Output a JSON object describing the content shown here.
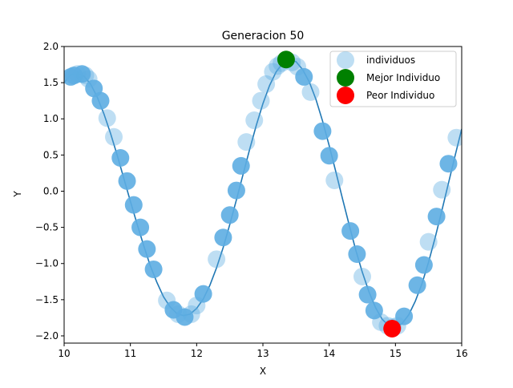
{
  "chart_data": {
    "type": "scatter",
    "title": "Generacion 50",
    "xlabel": "X",
    "ylabel": "Y",
    "xlim": [
      10,
      16
    ],
    "ylim": [
      -2.1,
      2.0
    ],
    "x_ticks": [
      10,
      11,
      12,
      13,
      14,
      15,
      16
    ],
    "x_tick_labels": [
      "10",
      "11",
      "12",
      "13",
      "14",
      "15",
      "16"
    ],
    "y_ticks": [
      -2.0,
      -1.5,
      -1.0,
      -0.5,
      0.0,
      0.5,
      1.0,
      1.5,
      2.0
    ],
    "y_tick_labels": [
      "−2.0",
      "−1.5",
      "−1.0",
      "−0.5",
      "0.0",
      "0.5",
      "1.0",
      "1.5",
      "2.0"
    ],
    "grid": false,
    "legend_position": "top-right",
    "curve": {
      "formula": "sin(x) + sin(x/2) approximation",
      "x": [
        10.0,
        10.1,
        10.2,
        10.3,
        10.4,
        10.5,
        10.6,
        10.7,
        10.8,
        10.9,
        11.0,
        11.1,
        11.2,
        11.3,
        11.4,
        11.5,
        11.6,
        11.7,
        11.8,
        11.9,
        12.0,
        12.1,
        12.2,
        12.3,
        12.4,
        12.5,
        12.6,
        12.7,
        12.8,
        12.9,
        13.0,
        13.1,
        13.2,
        13.3,
        13.4,
        13.5,
        13.6,
        13.7,
        13.8,
        13.9,
        14.0,
        14.1,
        14.2,
        14.3,
        14.4,
        14.5,
        14.6,
        14.7,
        14.8,
        14.9,
        15.0,
        15.1,
        15.2,
        15.3,
        15.4,
        15.5,
        15.6,
        15.7,
        15.8,
        15.9,
        16.0
      ],
      "y": [
        1.5,
        1.61,
        1.63,
        1.59,
        1.48,
        1.3,
        1.07,
        0.8,
        0.5,
        0.18,
        -0.14,
        -0.45,
        -0.75,
        -1.03,
        -1.26,
        -1.46,
        -1.6,
        -1.69,
        -1.72,
        -1.7,
        -1.62,
        -1.49,
        -1.3,
        -1.06,
        -0.78,
        -0.46,
        -0.12,
        0.23,
        0.58,
        0.91,
        1.21,
        1.46,
        1.65,
        1.77,
        1.82,
        1.79,
        1.68,
        1.51,
        1.27,
        0.97,
        0.63,
        0.27,
        -0.1,
        -0.46,
        -0.81,
        -1.12,
        -1.39,
        -1.61,
        -1.77,
        -1.86,
        -1.88,
        -1.83,
        -1.71,
        -1.52,
        -1.28,
        -0.98,
        -0.64,
        -0.27,
        0.11,
        0.49,
        0.86
      ]
    },
    "series": [
      {
        "name": "individuos",
        "x": [
          10.1,
          10.15,
          10.2,
          10.27,
          10.32,
          10.37,
          10.45,
          10.55,
          10.65,
          10.75,
          10.85,
          10.95,
          11.05,
          11.15,
          11.25,
          11.35,
          11.55,
          11.65,
          11.72,
          11.82,
          11.92,
          12.0,
          12.1,
          12.3,
          12.4,
          12.5,
          12.6,
          12.67,
          12.75,
          12.87,
          12.97,
          13.05,
          13.15,
          13.22,
          13.28,
          13.44,
          13.52,
          13.62,
          13.72,
          13.9,
          14.0,
          14.08,
          14.32,
          14.42,
          14.5,
          14.58,
          14.68,
          14.78,
          14.88,
          14.96,
          15.03,
          15.13,
          15.33,
          15.43,
          15.5,
          15.62,
          15.7,
          15.8,
          15.92
        ],
        "y": [
          1.58,
          1.6,
          1.62,
          1.62,
          1.6,
          1.55,
          1.42,
          1.25,
          1.01,
          0.75,
          0.46,
          0.14,
          -0.19,
          -0.5,
          -0.8,
          -1.08,
          -1.51,
          -1.64,
          -1.7,
          -1.74,
          -1.7,
          -1.58,
          -1.42,
          -0.94,
          -0.64,
          -0.33,
          0.01,
          0.35,
          0.68,
          0.98,
          1.25,
          1.48,
          1.65,
          1.73,
          1.77,
          1.78,
          1.72,
          1.58,
          1.37,
          0.83,
          0.49,
          0.15,
          -0.55,
          -0.87,
          -1.18,
          -1.43,
          -1.65,
          -1.81,
          -1.86,
          -1.88,
          -1.86,
          -1.73,
          -1.3,
          -1.02,
          -0.7,
          -0.35,
          0.02,
          0.38,
          0.74
        ],
        "opacity": [
          0.9,
          0.9,
          0.4,
          0.9,
          0.4,
          0.4,
          0.9,
          0.9,
          0.4,
          0.4,
          0.9,
          0.9,
          0.9,
          0.9,
          0.9,
          0.9,
          0.4,
          0.9,
          0.4,
          0.9,
          0.4,
          0.4,
          0.9,
          0.4,
          0.9,
          0.9,
          0.9,
          0.9,
          0.4,
          0.4,
          0.4,
          0.4,
          0.4,
          0.4,
          0.4,
          0.4,
          0.4,
          0.9,
          0.4,
          0.9,
          0.9,
          0.4,
          0.9,
          0.9,
          0.4,
          0.9,
          0.9,
          0.4,
          0.4,
          0.4,
          0.4,
          0.9,
          0.9,
          0.9,
          0.4,
          0.9,
          0.4,
          0.9,
          0.4
        ],
        "color": "#5DADE2"
      },
      {
        "name": "Mejor Individuo",
        "x": [
          13.35
        ],
        "y": [
          1.82
        ],
        "color": "#008000"
      },
      {
        "name": "Peor Individuo",
        "x": [
          14.95
        ],
        "y": [
          -1.9
        ],
        "color": "#FF0000"
      }
    ],
    "line_color": "#1F77B4",
    "legend": [
      {
        "label": "individuos",
        "color": "#5DADE2"
      },
      {
        "label": "Mejor Individuo",
        "color": "#008000"
      },
      {
        "label": "Peor Individuo",
        "color": "#FF0000"
      }
    ]
  }
}
